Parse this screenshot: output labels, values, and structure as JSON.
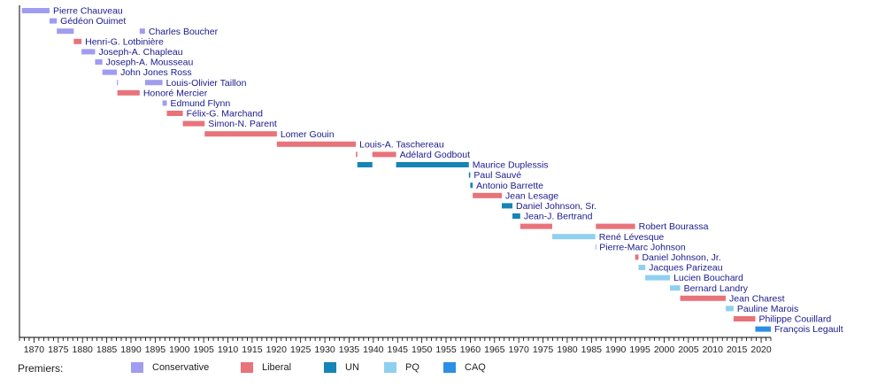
{
  "chart_data": {
    "type": "timeline",
    "xlim": [
      1867,
      2022
    ],
    "x_ticks": [
      1870,
      1875,
      1880,
      1885,
      1890,
      1895,
      1900,
      1905,
      1910,
      1915,
      1920,
      1925,
      1930,
      1935,
      1940,
      1945,
      1950,
      1955,
      1960,
      1965,
      1970,
      1975,
      1980,
      1985,
      1990,
      1995,
      2000,
      2005,
      2010,
      2015,
      2020
    ],
    "grid": false,
    "legend_title": "Premiers:",
    "parties": [
      {
        "key": "conservative",
        "label": "Conservative",
        "color": "#a09cf0"
      },
      {
        "key": "liberal",
        "label": "Liberal",
        "color": "#e8737a"
      },
      {
        "key": "un",
        "label": "UN",
        "color": "#1485b4"
      },
      {
        "key": "pq",
        "label": "PQ",
        "color": "#8fd0f0"
      },
      {
        "key": "caq",
        "label": "CAQ",
        "color": "#2b8fe6"
      }
    ],
    "premiers": [
      {
        "name": "Pierre Chauveau",
        "terms": [
          {
            "start": 1867.5,
            "end": 1873.2,
            "party": "conservative"
          }
        ]
      },
      {
        "name": "Gédéon Ouimet",
        "terms": [
          {
            "start": 1873.2,
            "end": 1874.7,
            "party": "conservative"
          }
        ]
      },
      {
        "name": "Charles Boucher",
        "terms": [
          {
            "start": 1874.7,
            "end": 1878.2,
            "party": "conservative"
          },
          {
            "start": 1891.8,
            "end": 1892.9,
            "party": "conservative"
          }
        ]
      },
      {
        "name": "Henri-G. Lotbinière",
        "terms": [
          {
            "start": 1878.2,
            "end": 1879.8,
            "party": "liberal"
          }
        ]
      },
      {
        "name": "Joseph-A. Chapleau",
        "terms": [
          {
            "start": 1879.8,
            "end": 1882.6,
            "party": "conservative"
          }
        ]
      },
      {
        "name": "Joseph-A. Mousseau",
        "terms": [
          {
            "start": 1882.6,
            "end": 1884.1,
            "party": "conservative"
          }
        ]
      },
      {
        "name": "John Jones Ross",
        "terms": [
          {
            "start": 1884.1,
            "end": 1887.1,
            "party": "conservative"
          }
        ]
      },
      {
        "name": "Louis-Olivier Taillon",
        "terms": [
          {
            "start": 1887.1,
            "end": 1887.2,
            "party": "conservative"
          },
          {
            "start": 1892.9,
            "end": 1896.5,
            "party": "conservative"
          }
        ]
      },
      {
        "name": "Honoré Mercier",
        "terms": [
          {
            "start": 1887.2,
            "end": 1891.8,
            "party": "liberal"
          }
        ]
      },
      {
        "name": "Edmund Flynn",
        "terms": [
          {
            "start": 1896.5,
            "end": 1897.4,
            "party": "conservative"
          }
        ]
      },
      {
        "name": "Félix-G. Marchand",
        "terms": [
          {
            "start": 1897.4,
            "end": 1900.7,
            "party": "liberal"
          }
        ]
      },
      {
        "name": "Simon-N. Parent",
        "terms": [
          {
            "start": 1900.7,
            "end": 1905.2,
            "party": "liberal"
          }
        ]
      },
      {
        "name": "Lomer Gouin",
        "terms": [
          {
            "start": 1905.2,
            "end": 1920.1,
            "party": "liberal"
          }
        ]
      },
      {
        "name": "Louis-A. Taschereau",
        "terms": [
          {
            "start": 1920.1,
            "end": 1936.4,
            "party": "liberal"
          }
        ]
      },
      {
        "name": "Adélard Godbout",
        "terms": [
          {
            "start": 1936.4,
            "end": 1936.7,
            "party": "liberal"
          },
          {
            "start": 1939.8,
            "end": 1944.7,
            "party": "liberal"
          }
        ]
      },
      {
        "name": "Maurice Duplessis",
        "terms": [
          {
            "start": 1936.7,
            "end": 1939.8,
            "party": "un"
          },
          {
            "start": 1944.7,
            "end": 1959.7,
            "party": "un"
          }
        ]
      },
      {
        "name": "Paul Sauvé",
        "terms": [
          {
            "start": 1959.7,
            "end": 1960.0,
            "party": "un"
          }
        ]
      },
      {
        "name": "Antonio Barrette",
        "terms": [
          {
            "start": 1960.0,
            "end": 1960.5,
            "party": "un"
          }
        ]
      },
      {
        "name": "Jean Lesage",
        "terms": [
          {
            "start": 1960.5,
            "end": 1966.5,
            "party": "liberal"
          }
        ]
      },
      {
        "name": "Daniel Johnson, Sr.",
        "terms": [
          {
            "start": 1966.5,
            "end": 1968.7,
            "party": "un"
          }
        ]
      },
      {
        "name": "Jean-J. Bertrand",
        "terms": [
          {
            "start": 1968.7,
            "end": 1970.3,
            "party": "un"
          }
        ]
      },
      {
        "name": "Robert Bourassa",
        "terms": [
          {
            "start": 1970.3,
            "end": 1976.9,
            "party": "liberal"
          },
          {
            "start": 1985.9,
            "end": 1994.0,
            "party": "liberal"
          }
        ]
      },
      {
        "name": "René Lévesque",
        "terms": [
          {
            "start": 1976.9,
            "end": 1985.8,
            "party": "pq"
          }
        ]
      },
      {
        "name": "Pierre-Marc Johnson",
        "terms": [
          {
            "start": 1985.8,
            "end": 1985.9,
            "party": "pq"
          }
        ]
      },
      {
        "name": "Daniel Johnson, Jr.",
        "terms": [
          {
            "start": 1994.0,
            "end": 1994.7,
            "party": "liberal"
          }
        ]
      },
      {
        "name": "Jacques Parizeau",
        "terms": [
          {
            "start": 1994.7,
            "end": 1996.1,
            "party": "pq"
          }
        ]
      },
      {
        "name": "Lucien Bouchard",
        "terms": [
          {
            "start": 1996.1,
            "end": 2001.2,
            "party": "pq"
          }
        ]
      },
      {
        "name": "Bernard Landry",
        "terms": [
          {
            "start": 2001.2,
            "end": 2003.3,
            "party": "pq"
          }
        ]
      },
      {
        "name": "Jean Charest",
        "terms": [
          {
            "start": 2003.3,
            "end": 2012.7,
            "party": "liberal"
          }
        ]
      },
      {
        "name": "Pauline Marois",
        "terms": [
          {
            "start": 2012.7,
            "end": 2014.3,
            "party": "pq"
          }
        ]
      },
      {
        "name": "Philippe Couillard",
        "terms": [
          {
            "start": 2014.3,
            "end": 2018.8,
            "party": "liberal"
          }
        ]
      },
      {
        "name": "François Legault",
        "terms": [
          {
            "start": 2018.8,
            "end": 2022.0,
            "party": "caq"
          }
        ]
      }
    ]
  }
}
